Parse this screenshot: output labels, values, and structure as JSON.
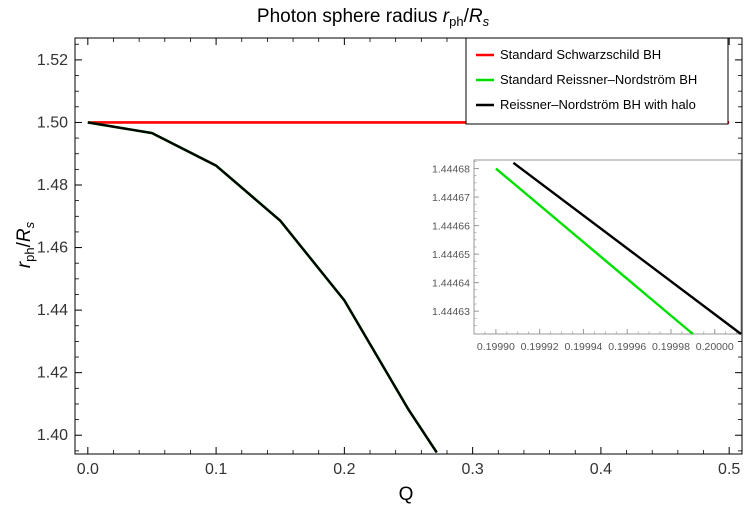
{
  "title": {
    "main": "Photon sphere radius ",
    "r": "r",
    "r_sub": "ph",
    "slash": "/",
    "R": "R",
    "R_sub": "s"
  },
  "axes": {
    "xlabel": "Q",
    "ylabel": {
      "r": "r",
      "r_sub": "ph",
      "slash": "/",
      "R": "R",
      "R_sub": "s"
    }
  },
  "chart_data": {
    "type": "line",
    "title": "Photon sphere radius r_ph/R_s",
    "xlabel": "Q",
    "ylabel": "r_ph/R_s",
    "xlim": [
      -0.01,
      0.51
    ],
    "ylim": [
      1.394,
      1.527
    ],
    "x_ticks": [
      0.0,
      0.1,
      0.2,
      0.3,
      0.4,
      0.5
    ],
    "x_tick_labels": [
      "0.0",
      "0.1",
      "0.2",
      "0.3",
      "0.4",
      "0.5"
    ],
    "y_ticks": [
      1.4,
      1.42,
      1.44,
      1.46,
      1.48,
      1.5,
      1.52
    ],
    "y_tick_labels": [
      "1.40",
      "1.42",
      "1.44",
      "1.46",
      "1.48",
      "1.50",
      "1.52"
    ],
    "legend_position": "top-right",
    "series": [
      {
        "name": "Standard Schwarzschild BH",
        "color": "#ff0000",
        "x": [
          0.0,
          0.5
        ],
        "y": [
          1.5,
          1.5
        ]
      },
      {
        "name": "Standard Reissner–Nordström BH",
        "color": "#00e000",
        "x": [
          0.0,
          0.05,
          0.1,
          0.15,
          0.2,
          0.25,
          0.272
        ],
        "y": [
          1.5,
          1.4966,
          1.4862,
          1.4686,
          1.4431,
          1.4082,
          1.3945
        ]
      },
      {
        "name": "Reissner–Nordström BH with halo",
        "color": "#000000",
        "x": [
          0.0,
          0.05,
          0.1,
          0.15,
          0.2,
          0.25,
          0.272
        ],
        "y": [
          1.5,
          1.4966,
          1.4862,
          1.4686,
          1.4431,
          1.4082,
          1.3945
        ]
      }
    ],
    "inset": {
      "type": "line",
      "xlim": [
        0.19989,
        0.200012
      ],
      "ylim": [
        1.444622,
        1.444683
      ],
      "x_ticks": [
        0.1999,
        0.19992,
        0.19994,
        0.19996,
        0.19998,
        0.2
      ],
      "x_tick_labels": [
        "0.19990",
        "0.19992",
        "0.19994",
        "0.19996",
        "0.19998",
        "0.20000"
      ],
      "y_ticks": [
        1.44463,
        1.44464,
        1.44465,
        1.44466,
        1.44467,
        1.44468
      ],
      "y_tick_labels": [
        "1.44463",
        "1.44464",
        "1.44465",
        "1.44466",
        "1.44467",
        "1.44468"
      ],
      "series": [
        {
          "name": "Standard Reissner–Nordström BH",
          "color": "#00e000",
          "x": [
            0.1999,
            0.19999
          ],
          "y": [
            1.44468,
            1.444622
          ]
        },
        {
          "name": "Reissner–Nordström BH with halo",
          "color": "#000000",
          "x": [
            0.199908,
            0.200012
          ],
          "y": [
            1.444682,
            1.444622
          ]
        }
      ]
    }
  }
}
